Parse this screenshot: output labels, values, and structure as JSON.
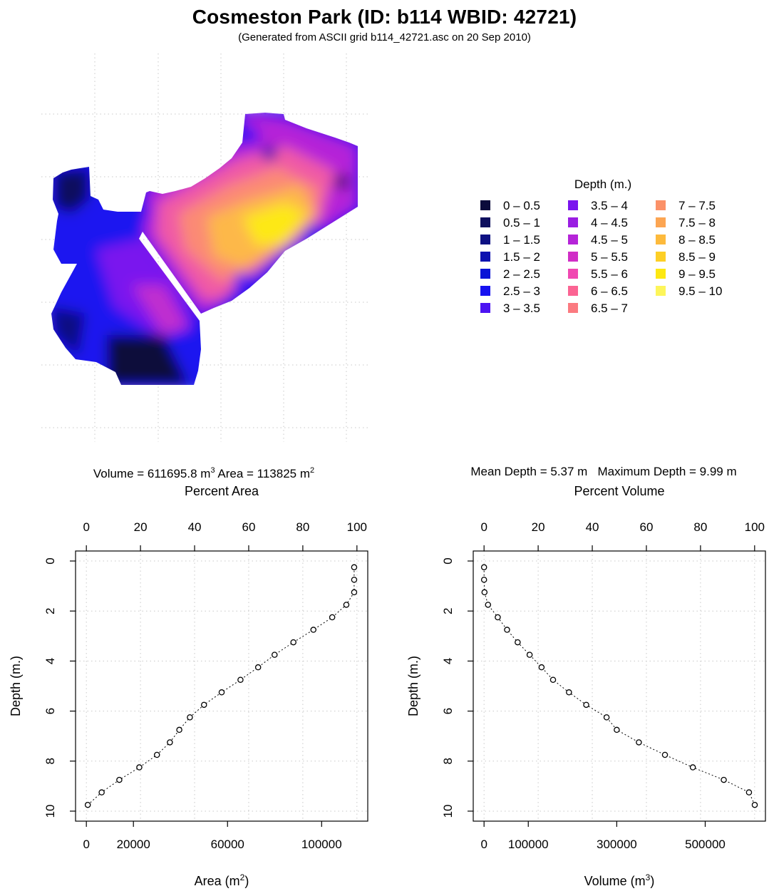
{
  "header": {
    "title": "Cosmeston Park (ID: b114   WBID: 42721)",
    "subtitle": "(Generated from ASCII grid b114_42721.asc on 20 Sep 2010)"
  },
  "map": {
    "legend_title": "Depth (m.)",
    "legend": [
      {
        "label": "0 – 0.5",
        "color": "#0b0b3b"
      },
      {
        "label": "0.5 – 1",
        "color": "#0e0f5e"
      },
      {
        "label": "1 – 1.5",
        "color": "#0e1183"
      },
      {
        "label": "1.5 – 2",
        "color": "#0c11b0"
      },
      {
        "label": "2 – 2.5",
        "color": "#0a14d6"
      },
      {
        "label": "2.5 – 3",
        "color": "#1712f0"
      },
      {
        "label": "3 – 3.5",
        "color": "#4c14f2"
      },
      {
        "label": "3.5 – 4",
        "color": "#7a14ee"
      },
      {
        "label": "4 – 4.5",
        "color": "#9a1ee2"
      },
      {
        "label": "4.5 – 5",
        "color": "#b524d8"
      },
      {
        "label": "5 – 5.5",
        "color": "#d02ec6"
      },
      {
        "label": "5.5 – 6",
        "color": "#f048b2"
      },
      {
        "label": "6 – 6.5",
        "color": "#fb6493"
      },
      {
        "label": "6.5 – 7",
        "color": "#fb7a80"
      },
      {
        "label": "7 – 7.5",
        "color": "#fb9168"
      },
      {
        "label": "7.5 – 8",
        "color": "#fca552"
      },
      {
        "label": "8 – 8.5",
        "color": "#fdba3c"
      },
      {
        "label": "8.5 – 9",
        "color": "#fdcf26"
      },
      {
        "label": "9 – 9.5",
        "color": "#fde812"
      },
      {
        "label": "9.5 – 10",
        "color": "#fdf55a"
      }
    ]
  },
  "stats": {
    "volume_text": "Volume = 611695.8 m",
    "volume_sup": "3",
    "area_text": "Area = 113825 m",
    "area_sup": "2",
    "mean_text": "Mean Depth = 5.37 m",
    "max_text": "Maximum Depth = 9.99 m"
  },
  "chart_data": [
    {
      "type": "scatter",
      "xlabel": "Area (m",
      "xlabel_sup": "2",
      "xlabel_close": ")",
      "ylabel": "Depth (m.)",
      "top_label": "Percent Area",
      "xlim": [
        0,
        115000
      ],
      "ylim": [
        10,
        0
      ],
      "x_ticks": [
        "0",
        "20000",
        "60000",
        "100000"
      ],
      "x_tick_values": [
        0,
        20000,
        60000,
        100000
      ],
      "top_ticks": [
        "0",
        "20",
        "40",
        "60",
        "80",
        "100"
      ],
      "y_ticks": [
        "0",
        "2",
        "4",
        "6",
        "8",
        "10"
      ],
      "grid": true,
      "x": [
        113825,
        113825,
        113825,
        110500,
        104500,
        96500,
        88000,
        80000,
        73000,
        65500,
        57500,
        50000,
        44000,
        39500,
        35500,
        30000,
        22500,
        14000,
        6500,
        600
      ],
      "y": [
        0.25,
        0.75,
        1.25,
        1.75,
        2.25,
        2.75,
        3.25,
        3.75,
        4.25,
        4.75,
        5.25,
        5.75,
        6.25,
        6.75,
        7.25,
        7.75,
        8.25,
        8.75,
        9.25,
        9.75
      ]
    },
    {
      "type": "scatter",
      "xlabel": "Volume (m",
      "xlabel_sup": "3",
      "xlabel_close": ")",
      "ylabel": "Depth (m.)",
      "top_label": "Percent Volume",
      "xlim": [
        0,
        611696
      ],
      "ylim": [
        10,
        0
      ],
      "x_ticks": [
        "0",
        "100000",
        "300000",
        "500000"
      ],
      "x_tick_values": [
        0,
        100000,
        300000,
        500000
      ],
      "top_ticks": [
        "0",
        "20",
        "40",
        "60",
        "80",
        "100"
      ],
      "y_ticks": [
        "0",
        "2",
        "4",
        "6",
        "8",
        "10"
      ],
      "grid": true,
      "x": [
        0,
        0,
        1000,
        9000,
        31000,
        52000,
        76000,
        103000,
        130000,
        156000,
        192000,
        231000,
        277000,
        300000,
        350000,
        409000,
        472000,
        542000,
        599000,
        612000
      ],
      "y": [
        0.25,
        0.75,
        1.25,
        1.75,
        2.25,
        2.75,
        3.25,
        3.75,
        4.25,
        4.75,
        5.25,
        5.75,
        6.25,
        6.75,
        7.25,
        7.75,
        8.25,
        8.75,
        9.25,
        9.75
      ]
    }
  ]
}
